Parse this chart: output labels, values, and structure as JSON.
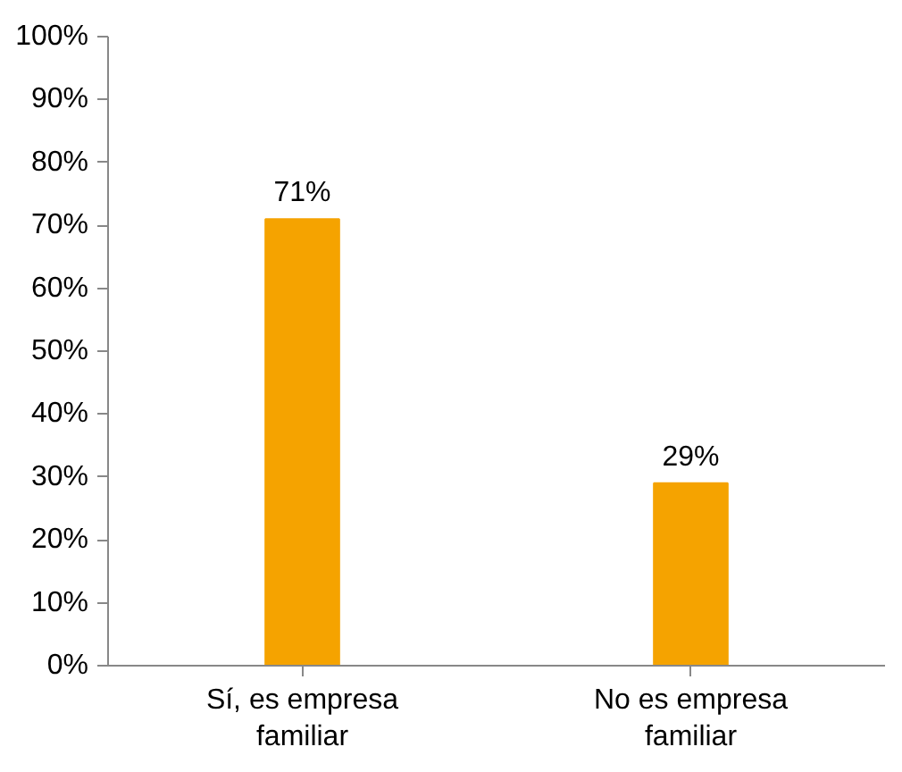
{
  "chart_data": {
    "type": "bar",
    "categories": [
      "Sí, es empresa familiar",
      "No es empresa familiar"
    ],
    "values": [
      71,
      29
    ],
    "value_labels": [
      "71%",
      "29%"
    ],
    "color": "#f5a300",
    "ylim": [
      0,
      100
    ],
    "yticks": [
      {
        "value": 0,
        "label": "0%"
      },
      {
        "value": 10,
        "label": "10%"
      },
      {
        "value": 20,
        "label": "20%"
      },
      {
        "value": 30,
        "label": "30%"
      },
      {
        "value": 40,
        "label": "40%"
      },
      {
        "value": 50,
        "label": "50%"
      },
      {
        "value": 60,
        "label": "60%"
      },
      {
        "value": 70,
        "label": "70%"
      },
      {
        "value": 80,
        "label": "80%"
      },
      {
        "value": 90,
        "label": "90%"
      },
      {
        "value": 100,
        "label": "100%"
      }
    ],
    "grid": false
  }
}
